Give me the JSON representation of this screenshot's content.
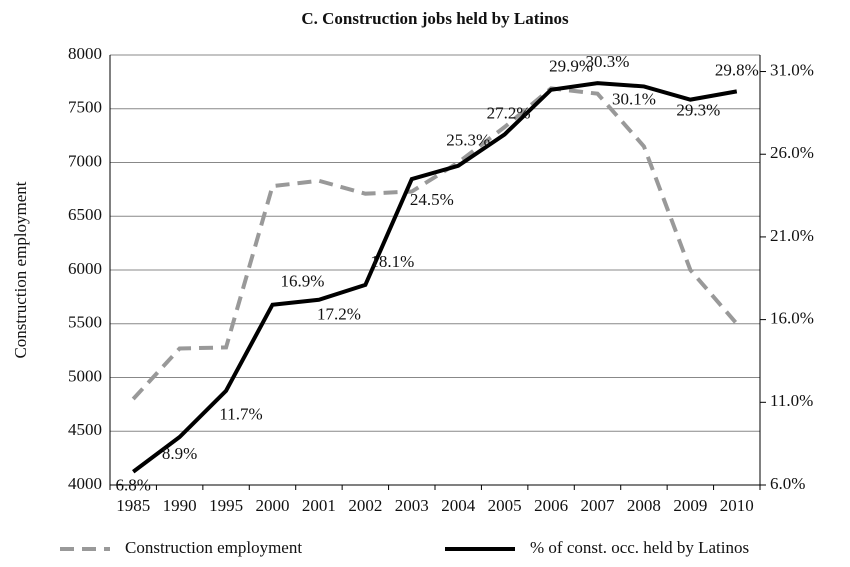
{
  "chart_data": {
    "type": "line",
    "title": "C. Construction jobs held by Latinos",
    "y_label": "Construction employment",
    "categories": [
      "1985",
      "1990",
      "1995",
      "2000",
      "2001",
      "2002",
      "2003",
      "2004",
      "2005",
      "2006",
      "2007",
      "2008",
      "2009",
      "2010"
    ],
    "series": [
      {
        "name": "Construction employment",
        "color": "#999999",
        "dash": true,
        "values": [
          4800,
          5270,
          5280,
          6780,
          6830,
          6710,
          6730,
          7000,
          7330,
          7690,
          7640,
          7150,
          6000,
          5500
        ]
      },
      {
        "name": "% of const. occ. held by Latinos",
        "color": "#000000",
        "axis": "y2",
        "values": [
          6.8,
          8.9,
          11.7,
          16.9,
          17.2,
          18.1,
          24.5,
          25.3,
          27.2,
          29.9,
          30.3,
          30.1,
          29.3,
          29.8
        ],
        "value_labels": [
          "6.8%",
          "8.9%",
          "11.7%",
          "16.9%",
          "17.2%",
          "18.1%",
          "24.5%",
          "25.3%",
          "27.2%",
          "29.9%",
          "30.3%",
          "30.1%",
          "29.3%",
          "29.8%"
        ]
      }
    ],
    "ylim": [
      4000,
      8000
    ],
    "yticks": [
      4000,
      4500,
      5000,
      5500,
      6000,
      6500,
      7000,
      7500,
      8000
    ],
    "y2lim": [
      6,
      32
    ],
    "y2ticks": [
      {
        "value": 6,
        "label": "6.0%"
      },
      {
        "value": 11,
        "label": "11.0%"
      },
      {
        "value": 16,
        "label": "16.0%"
      },
      {
        "value": 21,
        "label": "21.0%"
      },
      {
        "value": 26,
        "label": "26.0%"
      },
      {
        "value": 31,
        "label": "31.0%"
      }
    ],
    "grid": true
  }
}
